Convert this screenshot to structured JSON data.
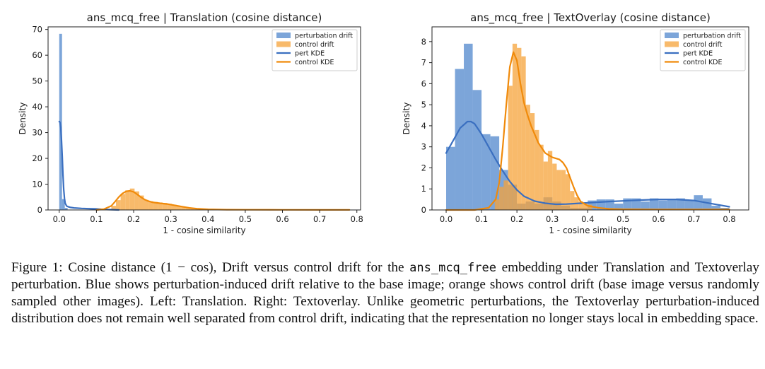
{
  "colors": {
    "pert_bar": "#5b8fd0",
    "ctrl_bar": "#f5a33a",
    "pert_line": "#3a6fc0",
    "ctrl_line": "#f08a0a",
    "axis": "#222222"
  },
  "chart_data": [
    {
      "type": "histogram",
      "title": "ans_mcq_free | Translation (cosine distance)",
      "xlabel": "1 - cosine similarity",
      "ylabel": "Density",
      "xlim": [
        -0.03,
        0.81
      ],
      "ylim": [
        0,
        71
      ],
      "xticks": [
        0.0,
        0.1,
        0.2,
        0.3,
        0.4,
        0.5,
        0.6,
        0.7,
        0.8
      ],
      "xtick_labels": [
        "0.0",
        "0.1",
        "0.2",
        "0.3",
        "0.4",
        "0.5",
        "0.6",
        "0.7",
        "0.8"
      ],
      "yticks": [
        0,
        10,
        20,
        30,
        40,
        50,
        60,
        70
      ],
      "ytick_labels": [
        "0",
        "10",
        "20",
        "30",
        "40",
        "50",
        "60",
        "70"
      ],
      "legend_position": "top-right",
      "legend": [
        "perturbation drift",
        "control drift",
        "pert KDE",
        "control KDE"
      ],
      "series": [
        {
          "name": "perturbation drift",
          "kind": "hist",
          "bin_width": 0.0075,
          "bins": [
            [
              0.0,
              68.3
            ],
            [
              0.0075,
              4.2
            ],
            [
              0.015,
              0.8
            ]
          ]
        },
        {
          "name": "control drift",
          "kind": "hist",
          "bin_width": 0.0125,
          "bins": [
            [
              0.14,
              1.6
            ],
            [
              0.1525,
              3.8
            ],
            [
              0.165,
              6.2
            ],
            [
              0.1775,
              7.6
            ],
            [
              0.19,
              8.3
            ],
            [
              0.2025,
              7.2
            ],
            [
              0.215,
              5.6
            ],
            [
              0.2275,
              3.9
            ],
            [
              0.24,
              3.4
            ],
            [
              0.2525,
              3.1
            ],
            [
              0.265,
              2.9
            ],
            [
              0.2775,
              2.7
            ],
            [
              0.29,
              2.4
            ],
            [
              0.3025,
              2.0
            ],
            [
              0.315,
              1.6
            ],
            [
              0.3275,
              1.3
            ],
            [
              0.34,
              1.0
            ],
            [
              0.3525,
              0.7
            ],
            [
              0.365,
              0.5
            ],
            [
              0.3775,
              0.35
            ],
            [
              0.39,
              0.25
            ],
            [
              0.4025,
              0.2
            ]
          ]
        },
        {
          "name": "pert KDE",
          "kind": "line",
          "x": [
            0.0,
            0.002,
            0.004,
            0.006,
            0.008,
            0.01,
            0.012,
            0.014,
            0.016,
            0.02,
            0.025,
            0.03,
            0.04,
            0.06,
            0.08,
            0.1,
            0.12,
            0.14,
            0.16
          ],
          "y": [
            34.3,
            34.0,
            32.0,
            27.5,
            21.0,
            14.0,
            8.0,
            4.5,
            2.6,
            1.5,
            1.2,
            1.0,
            0.8,
            0.6,
            0.5,
            0.4,
            0.2,
            0.1,
            0.0
          ]
        },
        {
          "name": "control KDE",
          "kind": "line",
          "x": [
            0.1,
            0.12,
            0.14,
            0.15,
            0.16,
            0.17,
            0.18,
            0.19,
            0.2,
            0.21,
            0.22,
            0.23,
            0.24,
            0.25,
            0.27,
            0.29,
            0.31,
            0.33,
            0.35,
            0.37,
            0.4,
            0.45,
            0.5,
            0.6,
            0.7,
            0.78
          ],
          "y": [
            0.0,
            0.3,
            1.6,
            3.2,
            5.0,
            6.4,
            7.2,
            7.4,
            7.0,
            6.0,
            4.9,
            4.0,
            3.4,
            3.0,
            2.6,
            2.3,
            1.8,
            1.3,
            0.8,
            0.5,
            0.25,
            0.12,
            0.08,
            0.05,
            0.03,
            0.02
          ]
        }
      ]
    },
    {
      "type": "histogram",
      "title": "ans_mcq_free | TextOverlay (cosine distance)",
      "xlabel": "1 - cosine similarity",
      "ylabel": "Density",
      "xlim": [
        -0.04,
        0.855
      ],
      "ylim": [
        0,
        8.7
      ],
      "xticks": [
        0.0,
        0.1,
        0.2,
        0.3,
        0.4,
        0.5,
        0.6,
        0.7,
        0.8
      ],
      "xtick_labels": [
        "0.0",
        "0.1",
        "0.2",
        "0.3",
        "0.4",
        "0.5",
        "0.6",
        "0.7",
        "0.8"
      ],
      "yticks": [
        0,
        1,
        2,
        3,
        4,
        5,
        6,
        7,
        8
      ],
      "ytick_labels": [
        "0",
        "1",
        "2",
        "3",
        "4",
        "5",
        "6",
        "7",
        "8"
      ],
      "legend_position": "top-right",
      "legend": [
        "perturbation drift",
        "control drift",
        "pert KDE",
        "control KDE"
      ],
      "series": [
        {
          "name": "perturbation drift",
          "kind": "hist",
          "bin_width": 0.025,
          "bins": [
            [
              0.0,
              3.0
            ],
            [
              0.025,
              6.7
            ],
            [
              0.05,
              7.9
            ],
            [
              0.075,
              5.7
            ],
            [
              0.1,
              3.6
            ],
            [
              0.125,
              3.5
            ],
            [
              0.15,
              1.9
            ],
            [
              0.175,
              1.2
            ],
            [
              0.2,
              0.3
            ],
            [
              0.225,
              0.4
            ],
            [
              0.25,
              0.3
            ],
            [
              0.275,
              0.6
            ],
            [
              0.3,
              0.4
            ],
            [
              0.325,
              0.2
            ],
            [
              0.35,
              0.1
            ],
            [
              0.375,
              0.1
            ],
            [
              0.4,
              0.45
            ],
            [
              0.425,
              0.5
            ],
            [
              0.45,
              0.5
            ],
            [
              0.475,
              0.3
            ],
            [
              0.5,
              0.55
            ],
            [
              0.525,
              0.55
            ],
            [
              0.55,
              0.4
            ],
            [
              0.575,
              0.55
            ],
            [
              0.6,
              0.45
            ],
            [
              0.625,
              0.5
            ],
            [
              0.65,
              0.55
            ],
            [
              0.675,
              0.45
            ],
            [
              0.7,
              0.7
            ],
            [
              0.725,
              0.55
            ],
            [
              0.75,
              0.2
            ],
            [
              0.775,
              0.1
            ]
          ]
        },
        {
          "name": "control drift",
          "kind": "hist",
          "bin_width": 0.0125,
          "bins": [
            [
              0.1375,
              0.5
            ],
            [
              0.15,
              1.1
            ],
            [
              0.1625,
              1.4
            ],
            [
              0.175,
              5.9
            ],
            [
              0.1875,
              7.9
            ],
            [
              0.2,
              7.7
            ],
            [
              0.2125,
              7.3
            ],
            [
              0.225,
              5.0
            ],
            [
              0.2375,
              4.6
            ],
            [
              0.25,
              3.8
            ],
            [
              0.2625,
              3.1
            ],
            [
              0.275,
              2.3
            ],
            [
              0.2875,
              2.8
            ],
            [
              0.3,
              2.2
            ],
            [
              0.3125,
              1.9
            ],
            [
              0.325,
              1.9
            ],
            [
              0.3375,
              1.7
            ],
            [
              0.35,
              0.9
            ],
            [
              0.3625,
              0.6
            ],
            [
              0.375,
              0.4
            ],
            [
              0.3875,
              0.3
            ],
            [
              0.4,
              0.25
            ]
          ]
        },
        {
          "name": "pert KDE",
          "kind": "line",
          "x": [
            0.0,
            0.02,
            0.04,
            0.06,
            0.07,
            0.08,
            0.1,
            0.12,
            0.14,
            0.16,
            0.18,
            0.2,
            0.22,
            0.25,
            0.28,
            0.31,
            0.34,
            0.38,
            0.42,
            0.46,
            0.5,
            0.55,
            0.6,
            0.65,
            0.7,
            0.75,
            0.8
          ],
          "y": [
            2.7,
            3.3,
            3.9,
            4.2,
            4.2,
            4.1,
            3.6,
            3.0,
            2.4,
            1.85,
            1.35,
            0.95,
            0.65,
            0.42,
            0.32,
            0.27,
            0.28,
            0.32,
            0.36,
            0.4,
            0.43,
            0.47,
            0.5,
            0.5,
            0.45,
            0.3,
            0.15
          ]
        },
        {
          "name": "control KDE",
          "kind": "line",
          "x": [
            0.0,
            0.08,
            0.12,
            0.14,
            0.15,
            0.16,
            0.17,
            0.18,
            0.19,
            0.2,
            0.21,
            0.22,
            0.23,
            0.24,
            0.26,
            0.28,
            0.3,
            0.32,
            0.33,
            0.34,
            0.35,
            0.36,
            0.37,
            0.38,
            0.4,
            0.43,
            0.46,
            0.5,
            0.6,
            0.7,
            0.8
          ],
          "y": [
            0.0,
            0.0,
            0.1,
            0.5,
            1.3,
            3.0,
            5.0,
            6.8,
            7.5,
            7.1,
            6.0,
            5.1,
            4.5,
            4.0,
            3.2,
            2.7,
            2.5,
            2.4,
            2.25,
            2.0,
            1.55,
            1.1,
            0.7,
            0.4,
            0.2,
            0.1,
            0.05,
            0.03,
            0.02,
            0.02,
            0.02
          ]
        }
      ]
    }
  ],
  "caption": {
    "lead": "Figure 1: Cosine distance ",
    "formula": "(1 − cos)",
    "part1": ", Drift versus control drift for the ",
    "code": "ans_mcq_free",
    "part2": " embedding under Translation and Textoverlay perturbation. Blue shows perturbation-induced drift relative to the base image; orange shows control drift (base image versus randomly sampled other images). Left: Translation. Right: Textoverlay. Unlike geometric perturbations, the Textoverlay perturbation-induced distribution does not remain well separated from control drift, indicating that the representation no longer stays local in embedding space."
  }
}
